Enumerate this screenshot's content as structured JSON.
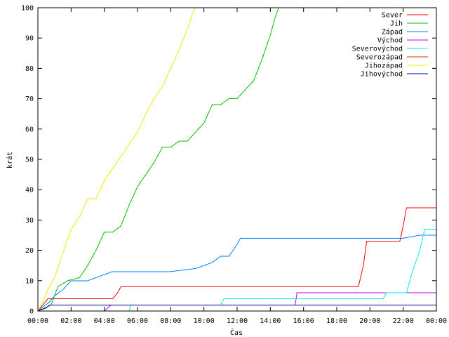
{
  "chart_data": {
    "type": "line",
    "title": "",
    "xlabel": "Čas",
    "ylabel": "krát",
    "xlim": [
      0,
      24
    ],
    "ylim": [
      0,
      100
    ],
    "x_ticks": [
      {
        "value": 0,
        "label": "00:00"
      },
      {
        "value": 2,
        "label": "02:00"
      },
      {
        "value": 4,
        "label": "04:00"
      },
      {
        "value": 6,
        "label": "06:00"
      },
      {
        "value": 8,
        "label": "08:00"
      },
      {
        "value": 10,
        "label": "10:00"
      },
      {
        "value": 12,
        "label": "12:00"
      },
      {
        "value": 14,
        "label": "14:00"
      },
      {
        "value": 16,
        "label": "16:00"
      },
      {
        "value": 18,
        "label": "18:00"
      },
      {
        "value": 20,
        "label": "20:00"
      },
      {
        "value": 22,
        "label": "22:00"
      },
      {
        "value": 24,
        "label": "00:00"
      }
    ],
    "y_ticks": [
      {
        "value": 0,
        "label": "0"
      },
      {
        "value": 10,
        "label": "10"
      },
      {
        "value": 20,
        "label": "20"
      },
      {
        "value": 30,
        "label": "30"
      },
      {
        "value": 40,
        "label": "40"
      },
      {
        "value": 50,
        "label": "50"
      },
      {
        "value": 60,
        "label": "60"
      },
      {
        "value": 70,
        "label": "70"
      },
      {
        "value": 80,
        "label": "80"
      },
      {
        "value": 90,
        "label": "90"
      },
      {
        "value": 100,
        "label": "100"
      }
    ],
    "grid": false,
    "legend_position": "top-right",
    "series": [
      {
        "name": "Sever",
        "color": "#ff0000",
        "x": [
          0,
          0.3,
          0.6,
          4.5,
          4.8,
          5.0,
          19.3,
          19.6,
          19.8,
          21.8,
          22.0,
          22.2,
          24
        ],
        "y": [
          0,
          2,
          4,
          4,
          6,
          8,
          8,
          15,
          23,
          23,
          28,
          34,
          34
        ]
      },
      {
        "name": "Jih",
        "color": "#00c000",
        "x": [
          0,
          0.8,
          1.2,
          1.8,
          2.5,
          3.0,
          3.5,
          4.0,
          4.5,
          5.0,
          5.5,
          6.0,
          6.5,
          7.0,
          7.5,
          8.0,
          8.5,
          9.0,
          9.5,
          10.0,
          10.5,
          11.0,
          11.5,
          12.0,
          12.5,
          13.0,
          13.5,
          14.0,
          14.3,
          14.5
        ],
        "y": [
          0,
          2,
          8,
          10,
          11,
          15,
          20,
          26,
          26,
          28,
          35,
          41,
          45,
          49,
          54,
          54,
          56,
          56,
          59,
          62,
          68,
          68,
          70,
          70,
          73,
          76,
          83,
          91,
          97,
          100
        ]
      },
      {
        "name": "Západ",
        "color": "#0080ff",
        "x": [
          0,
          0.7,
          1.0,
          1.5,
          2.0,
          3.0,
          3.5,
          4.0,
          4.5,
          5.0,
          6.0,
          8.0,
          9.5,
          10.0,
          10.5,
          11.0,
          11.5,
          12.0,
          12.2,
          13.0,
          16.0,
          20.0,
          22.0,
          23.0,
          24
        ],
        "y": [
          0,
          3,
          5,
          7,
          10,
          10,
          11,
          12,
          13,
          13,
          13,
          13,
          14,
          15,
          16,
          18,
          18,
          22,
          24,
          24,
          24,
          24,
          24,
          25,
          25
        ]
      },
      {
        "name": "Východ",
        "color": "#c000ff",
        "x": [
          0,
          4.0,
          4.2,
          4.4,
          15.5,
          15.6,
          24
        ],
        "y": [
          0,
          0,
          1,
          2,
          2,
          6,
          6
        ]
      },
      {
        "name": "Severovýchod",
        "color": "#00eeee",
        "x": [
          0,
          5.5,
          5.6,
          11.0,
          11.2,
          20.8,
          21.0,
          22.2,
          22.5,
          23.0,
          23.3,
          24
        ],
        "y": [
          0,
          0,
          2,
          2,
          4,
          4,
          6,
          6,
          12,
          20,
          27,
          27
        ]
      },
      {
        "name": "Severozápad",
        "color": "#c04000",
        "x": [
          0,
          24
        ],
        "y": [
          0,
          0
        ]
      },
      {
        "name": "Jihozápad",
        "color": "#eeee00",
        "x": [
          0,
          0.3,
          0.6,
          1.0,
          1.5,
          2.0,
          2.5,
          3.0,
          3.5,
          4.0,
          4.5,
          5.0,
          5.5,
          6.0,
          6.5,
          7.0,
          7.5,
          8.0,
          8.5,
          9.0,
          9.2,
          9.3,
          9.5
        ],
        "y": [
          0,
          3,
          7,
          11,
          19,
          27,
          31,
          37,
          37,
          43,
          47,
          51,
          55,
          59,
          65,
          70,
          74,
          80,
          86,
          93,
          96,
          98,
          100
        ]
      },
      {
        "name": "Jihovýchod",
        "color": "#0000a0",
        "x": [
          0,
          0.5,
          0.7,
          24
        ],
        "y": [
          0,
          1,
          2,
          2
        ]
      }
    ]
  }
}
